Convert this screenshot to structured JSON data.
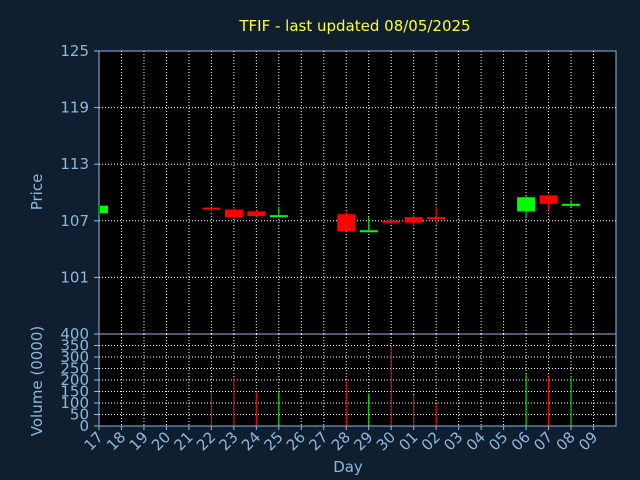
{
  "chart_data": {
    "type": "candlestick",
    "title": "TFIF - last updated 08/05/2025",
    "xlabel": "Day",
    "price_ylabel": "Price",
    "volume_ylabel": "Volume (0000)",
    "categories": [
      "17",
      "18",
      "19",
      "20",
      "21",
      "22",
      "23",
      "24",
      "25",
      "26",
      "27",
      "28",
      "29",
      "30",
      "01",
      "02",
      "03",
      "04",
      "05",
      "06",
      "07",
      "08",
      "09"
    ],
    "price_ylim": [
      95,
      125
    ],
    "price_ticks": [
      101,
      107,
      113,
      119,
      125
    ],
    "volume_ylim": [
      0,
      400
    ],
    "volume_ticks": [
      0,
      50,
      100,
      150,
      200,
      250,
      300,
      350,
      400
    ],
    "up_color": "#00ff00",
    "down_color": "#ff0000",
    "candles": [
      {
        "day": "17",
        "open": 107.8,
        "high": 108.6,
        "low": 107.8,
        "close": 108.6
      },
      {
        "day": "22",
        "open": 108.4,
        "high": 108.6,
        "low": 108.0,
        "close": 108.2
      },
      {
        "day": "23",
        "open": 108.2,
        "high": 108.4,
        "low": 107.2,
        "close": 107.4
      },
      {
        "day": "24",
        "open": 108.0,
        "high": 108.1,
        "low": 107.4,
        "close": 107.5
      },
      {
        "day": "25",
        "open": 107.4,
        "high": 108.5,
        "low": 107.4,
        "close": 107.6
      },
      {
        "day": "28",
        "open": 107.7,
        "high": 107.9,
        "low": 105.9,
        "close": 105.9
      },
      {
        "day": "29",
        "open": 105.9,
        "high": 107.4,
        "low": 105.8,
        "close": 106.0
      },
      {
        "day": "30",
        "open": 107.0,
        "high": 107.2,
        "low": 106.7,
        "close": 106.8
      },
      {
        "day": "01",
        "open": 107.4,
        "high": 107.6,
        "low": 106.4,
        "close": 106.8
      },
      {
        "day": "02",
        "open": 107.4,
        "high": 108.5,
        "low": 106.6,
        "close": 107.2
      },
      {
        "day": "06",
        "open": 108.0,
        "high": 109.6,
        "low": 107.3,
        "close": 109.5
      },
      {
        "day": "07",
        "open": 109.7,
        "high": 109.8,
        "low": 108.1,
        "close": 108.8
      },
      {
        "day": "08",
        "open": 108.7,
        "high": 109.2,
        "low": 108.5,
        "close": 108.8
      }
    ],
    "volumes": [
      {
        "day": "22",
        "value": 150
      },
      {
        "day": "23",
        "value": 210
      },
      {
        "day": "24",
        "value": 150
      },
      {
        "day": "25",
        "value": 155
      },
      {
        "day": "28",
        "value": 195
      },
      {
        "day": "29",
        "value": 140
      },
      {
        "day": "30",
        "value": 345
      },
      {
        "day": "01",
        "value": 135
      },
      {
        "day": "02",
        "value": 95
      },
      {
        "day": "06",
        "value": 225
      },
      {
        "day": "07",
        "value": 215
      },
      {
        "day": "08",
        "value": 210
      }
    ],
    "grid": true
  }
}
